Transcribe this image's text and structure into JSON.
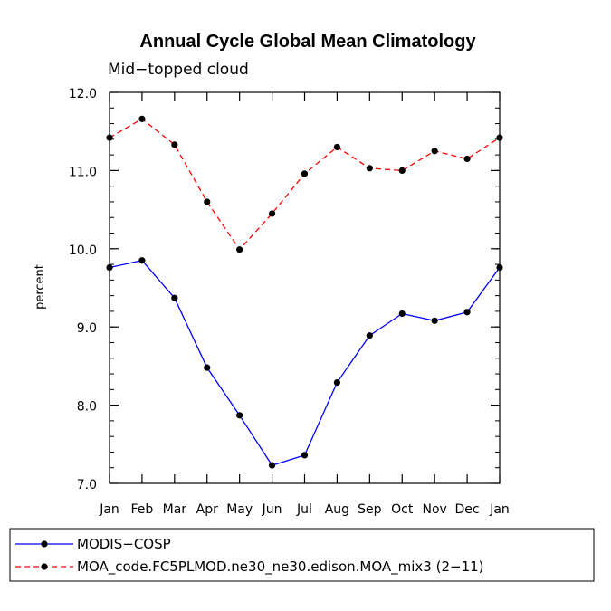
{
  "chart_data": {
    "type": "line",
    "title": "Annual Cycle Global Mean Climatology",
    "subtitle": "Mid−topped cloud",
    "xlabel": "",
    "ylabel": "percent",
    "ylim": [
      7.0,
      12.0
    ],
    "yticks": [
      "7.0",
      "8.0",
      "9.0",
      "10.0",
      "11.0",
      "12.0"
    ],
    "categories": [
      "Jan",
      "Feb",
      "Mar",
      "Apr",
      "May",
      "Jun",
      "Jul",
      "Aug",
      "Sep",
      "Oct",
      "Nov",
      "Dec",
      "Jan"
    ],
    "series": [
      {
        "name": "MODIS−COSP",
        "color": "#0000ff",
        "dashed": false,
        "values": [
          9.76,
          9.85,
          9.37,
          8.48,
          7.87,
          7.23,
          7.36,
          8.29,
          8.89,
          9.17,
          9.08,
          9.19,
          9.76
        ]
      },
      {
        "name": "MOA_code.FC5PLMOD.ne30_ne30.edison.MOA_mix3 (2−11)",
        "color": "#ff0000",
        "dashed": true,
        "values": [
          11.42,
          11.66,
          11.33,
          10.6,
          9.99,
          10.45,
          10.96,
          11.3,
          11.03,
          11.0,
          11.25,
          11.15,
          11.42
        ]
      }
    ]
  }
}
